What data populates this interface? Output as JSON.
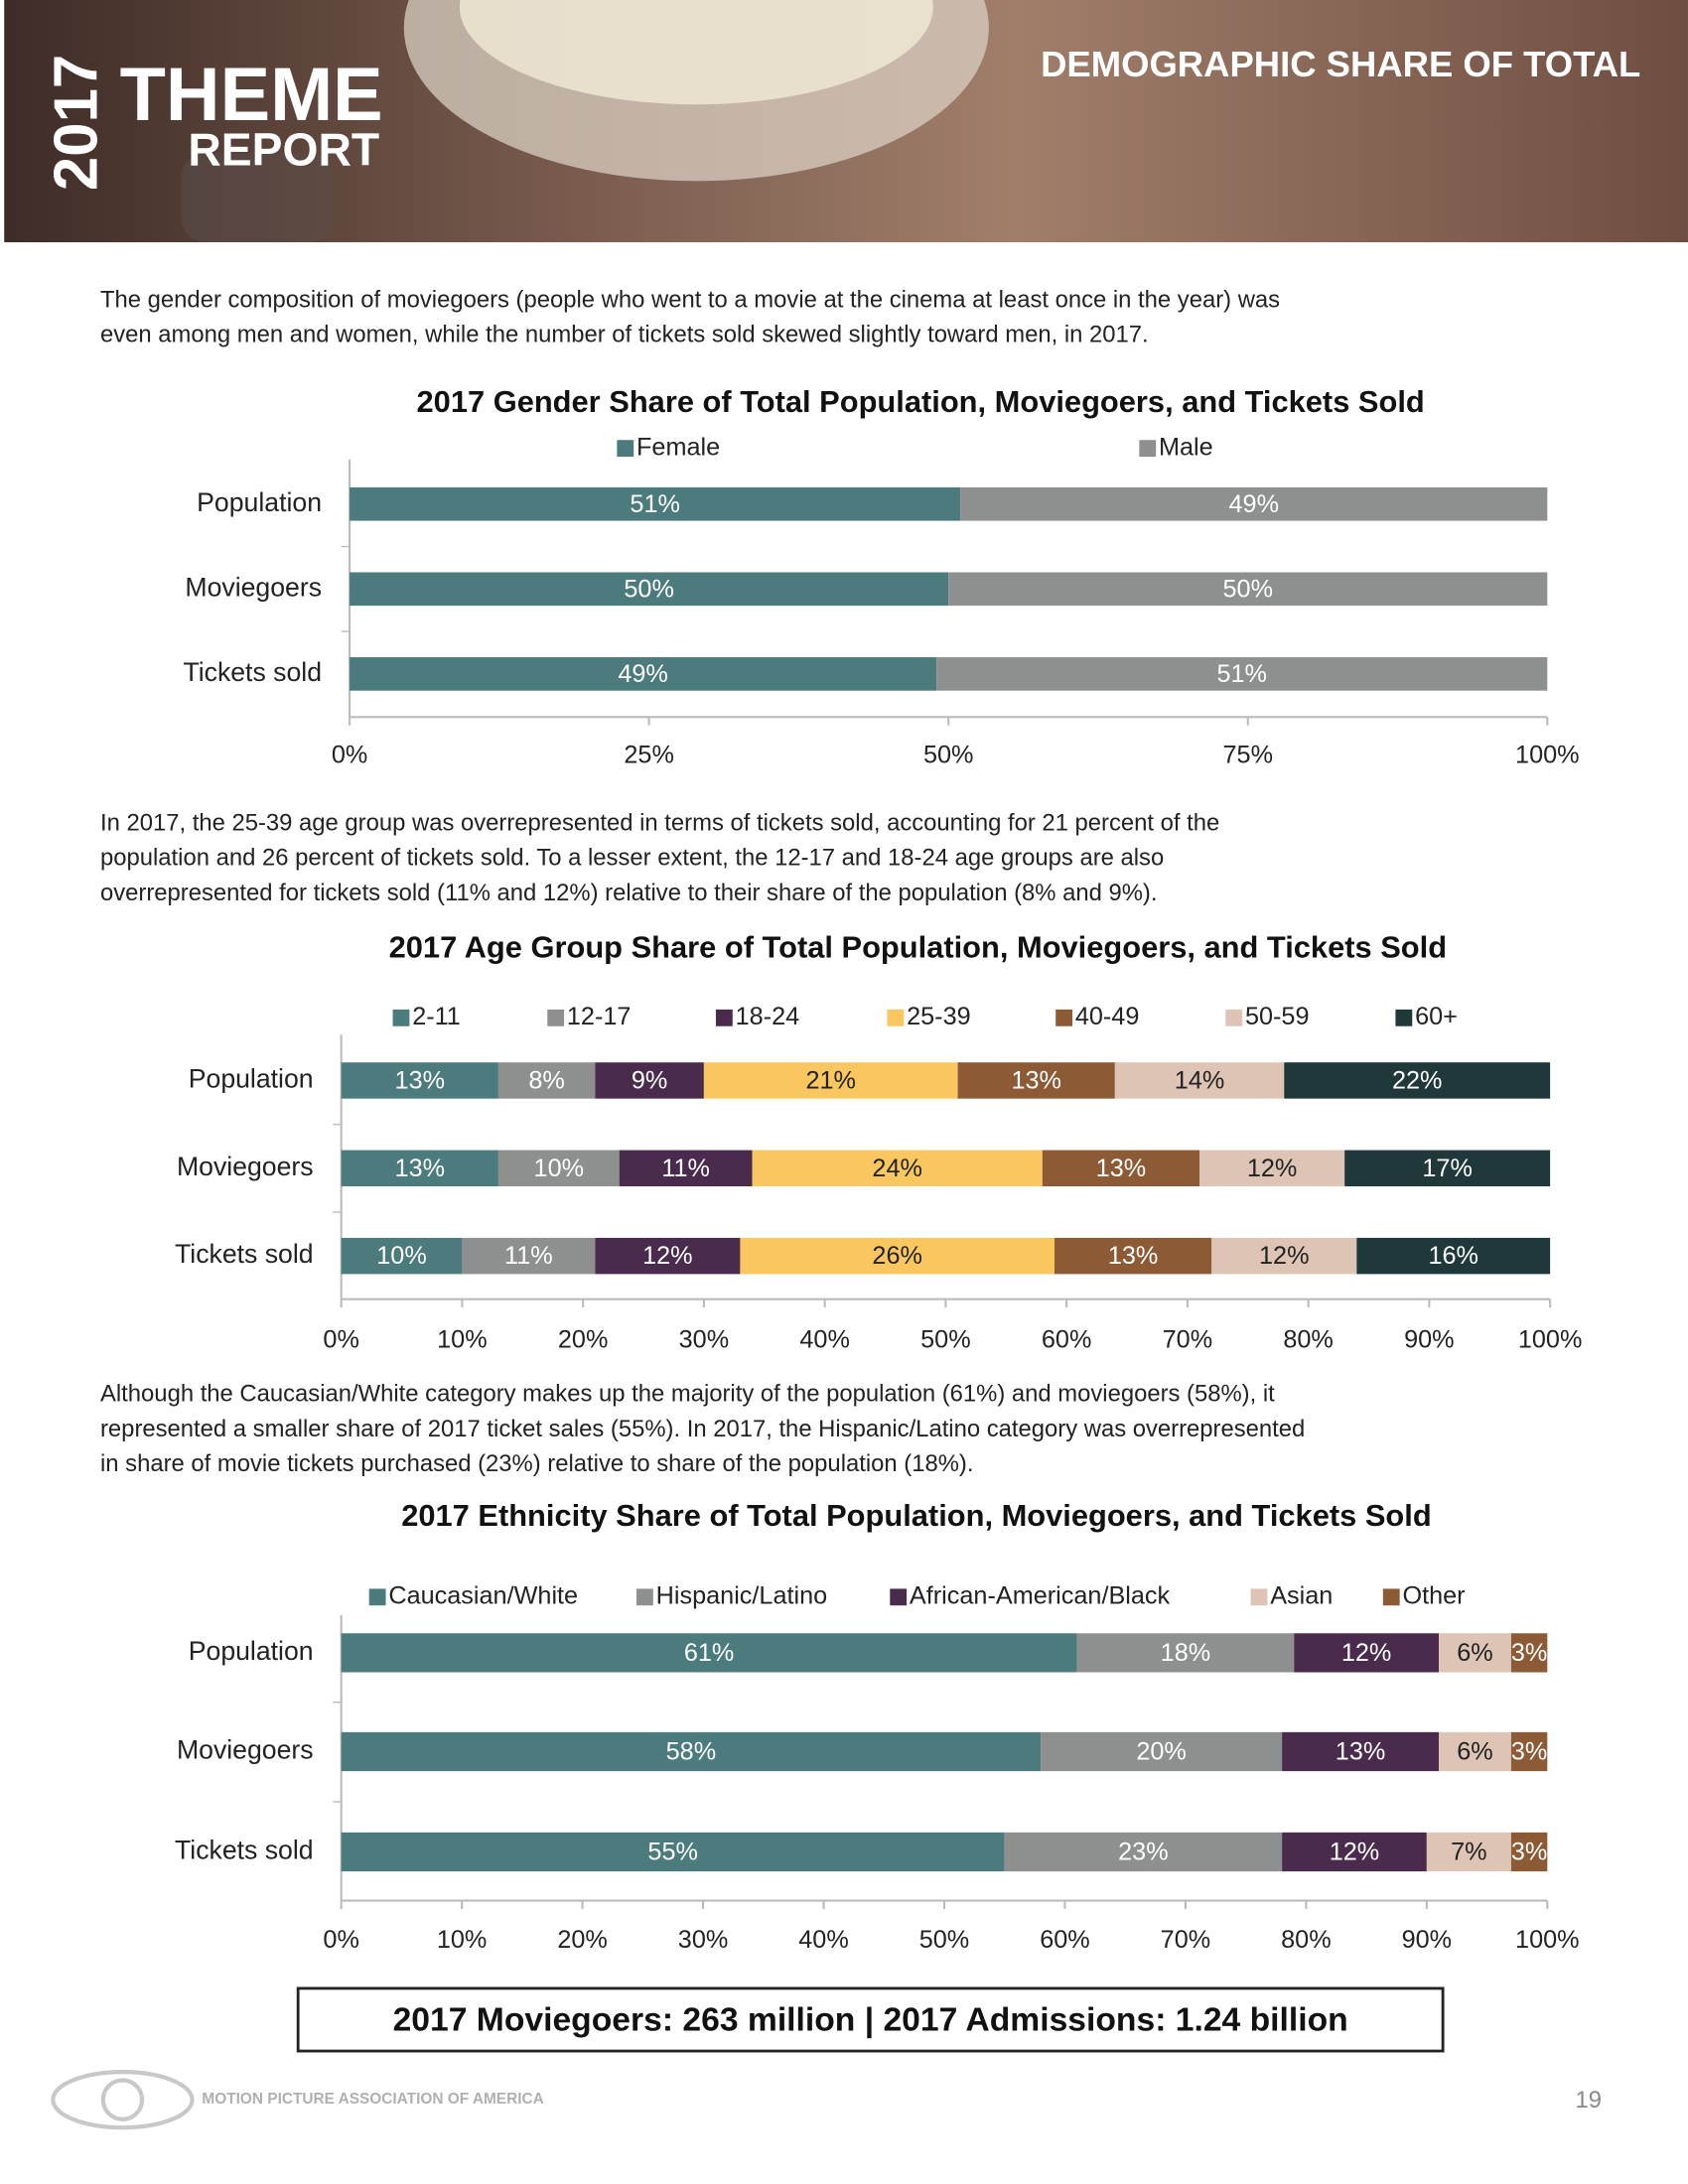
{
  "header": {
    "year": "2017",
    "title_line1": "THEME",
    "title_line2": "REPORT",
    "section": "DEMOGRAPHIC SHARE OF TOTAL"
  },
  "paragraphs": [
    [
      "The gender composition of moviegoers (people who went to a movie at the cinema at least once in the year) was",
      "even among men and women, while the number of tickets sold skewed slightly toward men, in 2017."
    ],
    [
      "In 2017, the 25-39 age group was overrepresented in terms of tickets sold, accounting for 21 percent of the",
      "population and 26 percent of tickets sold. To a lesser extent, the 12-17 and 18-24 age groups are also",
      "overrepresented for tickets sold (11% and 12%) relative to their share of the population (8% and 9%)."
    ],
    [
      "Although the Caucasian/White category makes up the majority of the population (61%) and moviegoers (58%), it",
      "represented a smaller share of 2017 ticket sales (55%). In 2017, the Hispanic/Latino category was overrepresented",
      "in share of movie tickets purchased (23%) relative to share of the population (18%)."
    ]
  ],
  "chart_data": [
    {
      "type": "bar",
      "orientation": "horizontal",
      "stacked": true,
      "title": "2017 Gender Share of Total Population, Moviegoers, and Tickets Sold",
      "categories": [
        "Population",
        "Moviegoers",
        "Tickets sold"
      ],
      "series": [
        {
          "name": "Female",
          "color": "#4b7b7d",
          "values": [
            51,
            50,
            49
          ],
          "value_labels": [
            "51%",
            "50%",
            "49%"
          ]
        },
        {
          "name": "Male",
          "color": "#8e9090",
          "values": [
            49,
            50,
            51
          ],
          "value_labels": [
            "49%",
            "50%",
            "51%"
          ]
        }
      ],
      "xlim": [
        0,
        100
      ],
      "xticks": [
        {
          "value": 0,
          "label": "0%"
        },
        {
          "value": 25,
          "label": "25%"
        },
        {
          "value": 50,
          "label": "50%"
        },
        {
          "value": 75,
          "label": "75%"
        },
        {
          "value": 100,
          "label": "100%"
        }
      ]
    },
    {
      "type": "bar",
      "orientation": "horizontal",
      "stacked": true,
      "title": "2017 Age Group Share of Total Population, Moviegoers, and Tickets Sold",
      "categories": [
        "Population",
        "Moviegoers",
        "Tickets sold"
      ],
      "series": [
        {
          "name": "2-11",
          "color": "#4b7b7d",
          "values": [
            13,
            13,
            10
          ],
          "value_labels": [
            "13%",
            "13%",
            "10%"
          ]
        },
        {
          "name": "12-17",
          "color": "#8e9090",
          "values": [
            8,
            10,
            11
          ],
          "value_labels": [
            "8%",
            "10%",
            "11%"
          ]
        },
        {
          "name": "18-24",
          "color": "#4a2b4e",
          "values": [
            9,
            11,
            12
          ],
          "value_labels": [
            "9%",
            "11%",
            "12%"
          ]
        },
        {
          "name": "25-39",
          "color": "#fac65f",
          "values": [
            21,
            24,
            26
          ],
          "value_labels": [
            "21%",
            "24%",
            "26%"
          ]
        },
        {
          "name": "40-49",
          "color": "#8c5a34",
          "values": [
            13,
            13,
            13
          ],
          "value_labels": [
            "13%",
            "13%",
            "13%"
          ]
        },
        {
          "name": "50-59",
          "color": "#ddc4b4",
          "values": [
            14,
            12,
            12
          ],
          "value_labels": [
            "14%",
            "12%",
            "12%"
          ]
        },
        {
          "name": "60+",
          "color": "#1f393a",
          "values": [
            22,
            17,
            16
          ],
          "value_labels": [
            "22%",
            "17%",
            "16%"
          ]
        }
      ],
      "xlim": [
        0,
        100
      ],
      "xticks": [
        {
          "value": 0,
          "label": "0%"
        },
        {
          "value": 10,
          "label": "10%"
        },
        {
          "value": 20,
          "label": "20%"
        },
        {
          "value": 30,
          "label": "30%"
        },
        {
          "value": 40,
          "label": "40%"
        },
        {
          "value": 50,
          "label": "50%"
        },
        {
          "value": 60,
          "label": "60%"
        },
        {
          "value": 70,
          "label": "70%"
        },
        {
          "value": 80,
          "label": "80%"
        },
        {
          "value": 90,
          "label": "90%"
        },
        {
          "value": 100,
          "label": "100%"
        }
      ]
    },
    {
      "type": "bar",
      "orientation": "horizontal",
      "stacked": true,
      "title": "2017 Ethnicity Share of Total Population, Moviegoers, and Tickets Sold",
      "categories": [
        "Population",
        "Moviegoers",
        "Tickets sold"
      ],
      "series": [
        {
          "name": "Caucasian/White",
          "color": "#4b7b7d",
          "values": [
            61,
            58,
            55
          ],
          "value_labels": [
            "61%",
            "58%",
            "55%"
          ]
        },
        {
          "name": "Hispanic/Latino",
          "color": "#8e9090",
          "values": [
            18,
            20,
            23
          ],
          "value_labels": [
            "18%",
            "20%",
            "23%"
          ]
        },
        {
          "name": "African-American/Black",
          "color": "#4a2b4e",
          "values": [
            12,
            13,
            12
          ],
          "value_labels": [
            "12%",
            "13%",
            "12%"
          ]
        },
        {
          "name": "Asian",
          "color": "#ddc4b4",
          "values": [
            6,
            6,
            7
          ],
          "value_labels": [
            "6%",
            "6%",
            "7%"
          ]
        },
        {
          "name": "Other",
          "color": "#8c5a34",
          "values": [
            3,
            3,
            3
          ],
          "value_labels": [
            "3%",
            "3%",
            "3%"
          ]
        }
      ],
      "xlim": [
        0,
        100
      ],
      "xticks": [
        {
          "value": 0,
          "label": "0%"
        },
        {
          "value": 10,
          "label": "10%"
        },
        {
          "value": 20,
          "label": "20%"
        },
        {
          "value": 30,
          "label": "30%"
        },
        {
          "value": 40,
          "label": "40%"
        },
        {
          "value": 50,
          "label": "50%"
        },
        {
          "value": 60,
          "label": "60%"
        },
        {
          "value": 70,
          "label": "70%"
        },
        {
          "value": 80,
          "label": "80%"
        },
        {
          "value": 90,
          "label": "90%"
        },
        {
          "value": 100,
          "label": "100%"
        }
      ]
    }
  ],
  "summary": "2017 Moviegoers: 263 million | 2017 Admissions: 1.24 billion",
  "footer": {
    "organization": "MOTION PICTURE ASSOCIATION OF AMERICA",
    "page_number": "19"
  }
}
